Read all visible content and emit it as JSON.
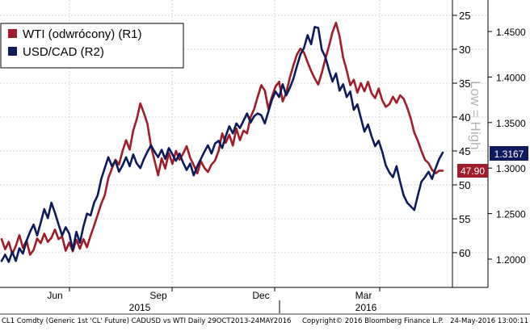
{
  "chart_data": {
    "type": "line",
    "legend_placement": "top-left",
    "grid": true,
    "inverted_axis_note": "Low = High",
    "x_tick_labels": [
      "Jun",
      "Sep",
      "Dec",
      "Mar"
    ],
    "x_year_labels": [
      "2015",
      "2016"
    ],
    "left_axis": {
      "label": "R1",
      "ylim": [
        25,
        65
      ],
      "inverted": true,
      "ticks": [
        "25",
        "30",
        "35",
        "40",
        "45",
        "50",
        "55",
        "60"
      ]
    },
    "right_axis": {
      "label": "R2",
      "ylim": [
        1.15,
        1.48
      ],
      "ticks": [
        "1.4500",
        "1.4000",
        "1.3500",
        "1.3000",
        "1.2500",
        "1.2000"
      ]
    },
    "series": [
      {
        "name": "WTI (odwrócony) (R1)",
        "axis": "R1",
        "color": "#a01c28",
        "last_value_label": "47.90",
        "points": [
          [
            0,
            58.0
          ],
          [
            2,
            59.5
          ],
          [
            4,
            58.4
          ],
          [
            6,
            60.2
          ],
          [
            8,
            59.0
          ],
          [
            10,
            57.4
          ],
          [
            12,
            59.3
          ],
          [
            14,
            58.2
          ],
          [
            16,
            60.3
          ],
          [
            18,
            59.6
          ],
          [
            20,
            57.9
          ],
          [
            22,
            58.6
          ],
          [
            24,
            57.2
          ],
          [
            26,
            58.4
          ],
          [
            28,
            57.8
          ],
          [
            30,
            56.6
          ],
          [
            32,
            58.0
          ],
          [
            34,
            57.6
          ],
          [
            36,
            59.7
          ],
          [
            38,
            58.5
          ],
          [
            40,
            59.8
          ],
          [
            42,
            58.1
          ],
          [
            44,
            59.4
          ],
          [
            46,
            58.0
          ],
          [
            48,
            59.2
          ],
          [
            50,
            57.5
          ],
          [
            52,
            56.0
          ],
          [
            54,
            54.4
          ],
          [
            56,
            52.8
          ],
          [
            58,
            51.5
          ],
          [
            60,
            49.0
          ],
          [
            62,
            47.6
          ],
          [
            64,
            46.3
          ],
          [
            66,
            47.0
          ],
          [
            68,
            45.0
          ],
          [
            70,
            43.4
          ],
          [
            72,
            44.8
          ],
          [
            74,
            42.0
          ],
          [
            76,
            40.3
          ],
          [
            78,
            38.0
          ],
          [
            80,
            39.4
          ],
          [
            82,
            41.0
          ],
          [
            84,
            44.3
          ],
          [
            86,
            46.4
          ],
          [
            88,
            48.6
          ],
          [
            90,
            46.1
          ],
          [
            92,
            47.6
          ],
          [
            94,
            45.3
          ],
          [
            96,
            46.9
          ],
          [
            98,
            45.0
          ],
          [
            100,
            46.3
          ],
          [
            102,
            45.4
          ],
          [
            104,
            44.3
          ],
          [
            106,
            46.0
          ],
          [
            108,
            47.1
          ],
          [
            110,
            48.3
          ],
          [
            112,
            46.5
          ],
          [
            114,
            47.5
          ],
          [
            116,
            48.1
          ],
          [
            118,
            47.0
          ],
          [
            120,
            46.4
          ],
          [
            122,
            45.0
          ],
          [
            124,
            42.4
          ],
          [
            126,
            43.8
          ],
          [
            128,
            42.6
          ],
          [
            130,
            44.2
          ],
          [
            132,
            41.7
          ],
          [
            134,
            43.4
          ],
          [
            136,
            42.0
          ],
          [
            138,
            42.4
          ],
          [
            140,
            40.0
          ],
          [
            142,
            38.8
          ],
          [
            144,
            37.0
          ],
          [
            146,
            35.3
          ],
          [
            148,
            36.1
          ],
          [
            150,
            38.8
          ],
          [
            152,
            37.0
          ],
          [
            154,
            35.5
          ],
          [
            156,
            34.8
          ],
          [
            158,
            37.7
          ],
          [
            160,
            36.4
          ],
          [
            162,
            34.2
          ],
          [
            164,
            32.4
          ],
          [
            166,
            30.8
          ],
          [
            168,
            29.9
          ],
          [
            170,
            30.5
          ],
          [
            172,
            31.9
          ],
          [
            174,
            33.2
          ],
          [
            176,
            34.3
          ],
          [
            178,
            35.2
          ],
          [
            180,
            33.5
          ],
          [
            182,
            31.4
          ],
          [
            184,
            29.6
          ],
          [
            186,
            27.5
          ],
          [
            188,
            26.1
          ],
          [
            190,
            28.1
          ],
          [
            192,
            31.2
          ],
          [
            194,
            33.1
          ],
          [
            196,
            35.3
          ],
          [
            198,
            34.5
          ],
          [
            200,
            36.4
          ],
          [
            202,
            35.0
          ],
          [
            204,
            36.2
          ],
          [
            206,
            34.8
          ],
          [
            208,
            36.5
          ],
          [
            210,
            37.2
          ],
          [
            212,
            35.8
          ],
          [
            214,
            37.5
          ],
          [
            216,
            38.5
          ],
          [
            218,
            38.1
          ],
          [
            220,
            37.0
          ],
          [
            222,
            37.9
          ],
          [
            224,
            36.8
          ],
          [
            226,
            37.3
          ],
          [
            228,
            38.6
          ],
          [
            230,
            40.2
          ],
          [
            232,
            42.3
          ],
          [
            234,
            43.5
          ],
          [
            236,
            45.0
          ],
          [
            238,
            46.3
          ],
          [
            240,
            46.8
          ],
          [
            242,
            47.8
          ],
          [
            244,
            48.3
          ],
          [
            246,
            47.9
          ],
          [
            248,
            47.9
          ]
        ]
      },
      {
        "name": "USD/CAD (R2)",
        "axis": "R2",
        "color": "#0d1a5e",
        "last_value_label": "1.3167",
        "points": [
          [
            0,
            1.198
          ],
          [
            2,
            1.205
          ],
          [
            4,
            1.197
          ],
          [
            6,
            1.208
          ],
          [
            8,
            1.198
          ],
          [
            10,
            1.212
          ],
          [
            12,
            1.206
          ],
          [
            14,
            1.22
          ],
          [
            16,
            1.23
          ],
          [
            18,
            1.238
          ],
          [
            20,
            1.226
          ],
          [
            22,
            1.24
          ],
          [
            24,
            1.255
          ],
          [
            26,
            1.245
          ],
          [
            28,
            1.262
          ],
          [
            30,
            1.251
          ],
          [
            32,
            1.238
          ],
          [
            34,
            1.226
          ],
          [
            36,
            1.235
          ],
          [
            38,
            1.228
          ],
          [
            40,
            1.21
          ],
          [
            42,
            1.23
          ],
          [
            44,
            1.218
          ],
          [
            46,
            1.236
          ],
          [
            48,
            1.25
          ],
          [
            50,
            1.248
          ],
          [
            52,
            1.262
          ],
          [
            54,
            1.27
          ],
          [
            56,
            1.288
          ],
          [
            58,
            1.3
          ],
          [
            60,
            1.312
          ],
          [
            62,
            1.302
          ],
          [
            64,
            1.308
          ],
          [
            66,
            1.296
          ],
          [
            68,
            1.303
          ],
          [
            70,
            1.312
          ],
          [
            72,
            1.302
          ],
          [
            74,
            1.315
          ],
          [
            76,
            1.305
          ],
          [
            78,
            1.3
          ],
          [
            80,
            1.31
          ],
          [
            82,
            1.318
          ],
          [
            84,
            1.325
          ],
          [
            86,
            1.318
          ],
          [
            88,
            1.312
          ],
          [
            90,
            1.32
          ],
          [
            92,
            1.31
          ],
          [
            94,
            1.322
          ],
          [
            96,
            1.315
          ],
          [
            98,
            1.308
          ],
          [
            100,
            1.316
          ],
          [
            102,
            1.306
          ],
          [
            104,
            1.298
          ],
          [
            106,
            1.305
          ],
          [
            108,
            1.292
          ],
          [
            110,
            1.302
          ],
          [
            112,
            1.31
          ],
          [
            114,
            1.318
          ],
          [
            116,
            1.325
          ],
          [
            118,
            1.316
          ],
          [
            120,
            1.327
          ],
          [
            122,
            1.33
          ],
          [
            124,
            1.322
          ],
          [
            126,
            1.335
          ],
          [
            128,
            1.346
          ],
          [
            130,
            1.338
          ],
          [
            132,
            1.349
          ],
          [
            134,
            1.344
          ],
          [
            136,
            1.352
          ],
          [
            138,
            1.36
          ],
          [
            140,
            1.35
          ],
          [
            142,
            1.357
          ],
          [
            144,
            1.36
          ],
          [
            146,
            1.358
          ],
          [
            148,
            1.349
          ],
          [
            150,
            1.362
          ],
          [
            152,
            1.375
          ],
          [
            154,
            1.384
          ],
          [
            156,
            1.378
          ],
          [
            158,
            1.392
          ],
          [
            160,
            1.38
          ],
          [
            162,
            1.388
          ],
          [
            164,
            1.398
          ],
          [
            166,
            1.412
          ],
          [
            168,
            1.425
          ],
          [
            170,
            1.432
          ],
          [
            172,
            1.446
          ],
          [
            174,
            1.436
          ],
          [
            176,
            1.455
          ],
          [
            178,
            1.454
          ],
          [
            180,
            1.43
          ],
          [
            182,
            1.422
          ],
          [
            184,
            1.408
          ],
          [
            186,
            1.395
          ],
          [
            188,
            1.404
          ],
          [
            190,
            1.385
          ],
          [
            192,
            1.392
          ],
          [
            194,
            1.378
          ],
          [
            196,
            1.384
          ],
          [
            198,
            1.364
          ],
          [
            200,
            1.37
          ],
          [
            202,
            1.355
          ],
          [
            204,
            1.34
          ],
          [
            206,
            1.348
          ],
          [
            208,
            1.335
          ],
          [
            210,
            1.324
          ],
          [
            212,
            1.33
          ],
          [
            214,
            1.318
          ],
          [
            216,
            1.303
          ],
          [
            218,
            1.295
          ],
          [
            220,
            1.29
          ],
          [
            222,
            1.302
          ],
          [
            224,
            1.285
          ],
          [
            226,
            1.27
          ],
          [
            228,
            1.262
          ],
          [
            230,
            1.258
          ],
          [
            232,
            1.254
          ],
          [
            234,
            1.27
          ],
          [
            236,
            1.285
          ],
          [
            238,
            1.29
          ],
          [
            240,
            1.296
          ],
          [
            242,
            1.288
          ],
          [
            244,
            1.3
          ],
          [
            246,
            1.31
          ],
          [
            248,
            1.317
          ]
        ]
      }
    ]
  },
  "footer": {
    "left": "CL1 Comdty (Generic 1st 'CL' Future) CADUSD vs WTI  Daily 29OCT2013-24MAY2016",
    "center": "Copyright© 2016 Bloomberg Finance L.P.",
    "right": "24-May-2016 13:00:11"
  }
}
